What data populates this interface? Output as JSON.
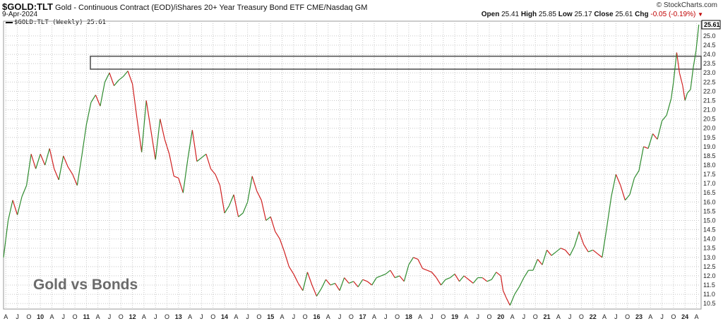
{
  "header": {
    "symbol": "$GOLD:TLT",
    "description": "Gold - Continuous Contract (EOD)/iShares 20+ Year Treasury Bond ETF  CME/Nasdaq GM",
    "date": "9-Apr-2024",
    "brand": "© StockCharts.com",
    "ohlc": {
      "open_label": "Open",
      "open": "25.41",
      "high_label": "High",
      "high": "25.85",
      "low_label": "Low",
      "low": "25.17",
      "close_label": "Close",
      "close": "25.61",
      "chg_label": "Chg",
      "chg": "-0.05 (-0.19%)"
    }
  },
  "legend": {
    "series": "$GOLD:TLT (Weekly) 25.61"
  },
  "overlay_text": "Gold vs Bonds",
  "colors": {
    "up": "#2e8b2e",
    "down": "#d02020",
    "grid": "#c8c8c8",
    "box": "#555555"
  },
  "chart_data": {
    "type": "line",
    "frequency": "weekly",
    "xlim": [
      2009.2,
      2024.35
    ],
    "ylim": [
      10.2,
      25.8
    ],
    "y_ticks": [
      "10.5",
      "11.0",
      "11.5",
      "12.0",
      "12.5",
      "13.0",
      "13.5",
      "14.0",
      "14.5",
      "15.0",
      "15.5",
      "16.0",
      "16.5",
      "17.0",
      "17.5",
      "18.0",
      "18.5",
      "19.0",
      "19.5",
      "20.0",
      "20.5",
      "21.0",
      "21.5",
      "22.0",
      "22.5",
      "23.0",
      "23.5",
      "24.0",
      "24.5",
      "25.0"
    ],
    "x_tick_labels": [
      "A",
      "J",
      "O",
      "10",
      "A",
      "J",
      "O",
      "11",
      "A",
      "J",
      "O",
      "12",
      "A",
      "J",
      "O",
      "13",
      "A",
      "J",
      "O",
      "14",
      "A",
      "J",
      "O",
      "15",
      "A",
      "J",
      "O",
      "16",
      "A",
      "J",
      "O",
      "17",
      "A",
      "J",
      "O",
      "18",
      "A",
      "J",
      "O",
      "19",
      "A",
      "J",
      "O",
      "20",
      "A",
      "J",
      "O",
      "21",
      "A",
      "J",
      "O",
      "22",
      "A",
      "J",
      "O",
      "23",
      "A",
      "J",
      "O",
      "24",
      "A"
    ],
    "last_value": "25.61",
    "resistance_zone": [
      23.2,
      23.9
    ],
    "points": [
      [
        2009.2,
        13.0
      ],
      [
        2009.3,
        15.0
      ],
      [
        2009.4,
        16.1
      ],
      [
        2009.5,
        15.3
      ],
      [
        2009.6,
        16.3
      ],
      [
        2009.7,
        16.9
      ],
      [
        2009.8,
        18.6
      ],
      [
        2009.9,
        17.8
      ],
      [
        2010.0,
        18.6
      ],
      [
        2010.1,
        18.0
      ],
      [
        2010.2,
        18.9
      ],
      [
        2010.3,
        17.8
      ],
      [
        2010.4,
        17.2
      ],
      [
        2010.5,
        18.5
      ],
      [
        2010.6,
        17.9
      ],
      [
        2010.7,
        17.5
      ],
      [
        2010.8,
        16.9
      ],
      [
        2010.9,
        18.5
      ],
      [
        2011.0,
        20.2
      ],
      [
        2011.1,
        21.4
      ],
      [
        2011.2,
        21.8
      ],
      [
        2011.3,
        21.2
      ],
      [
        2011.4,
        22.5
      ],
      [
        2011.5,
        23.0
      ],
      [
        2011.6,
        22.3
      ],
      [
        2011.7,
        22.6
      ],
      [
        2011.8,
        22.8
      ],
      [
        2011.9,
        23.1
      ],
      [
        2012.0,
        22.4
      ],
      [
        2012.1,
        20.5
      ],
      [
        2012.2,
        18.7
      ],
      [
        2012.3,
        21.5
      ],
      [
        2012.4,
        19.9
      ],
      [
        2012.5,
        18.3
      ],
      [
        2012.6,
        20.5
      ],
      [
        2012.7,
        19.4
      ],
      [
        2012.8,
        18.6
      ],
      [
        2012.9,
        17.4
      ],
      [
        2013.0,
        17.3
      ],
      [
        2013.1,
        16.5
      ],
      [
        2013.2,
        18.3
      ],
      [
        2013.3,
        19.9
      ],
      [
        2013.4,
        18.2
      ],
      [
        2013.5,
        18.4
      ],
      [
        2013.6,
        18.6
      ],
      [
        2013.7,
        17.8
      ],
      [
        2013.8,
        17.5
      ],
      [
        2013.9,
        16.9
      ],
      [
        2014.0,
        15.4
      ],
      [
        2014.1,
        15.8
      ],
      [
        2014.2,
        16.4
      ],
      [
        2014.3,
        15.2
      ],
      [
        2014.4,
        15.4
      ],
      [
        2014.5,
        16.0
      ],
      [
        2014.6,
        17.4
      ],
      [
        2014.7,
        16.6
      ],
      [
        2014.8,
        16.1
      ],
      [
        2014.9,
        15.0
      ],
      [
        2015.0,
        15.2
      ],
      [
        2015.1,
        14.4
      ],
      [
        2015.2,
        14.0
      ],
      [
        2015.3,
        13.3
      ],
      [
        2015.4,
        12.5
      ],
      [
        2015.5,
        12.1
      ],
      [
        2015.6,
        11.6
      ],
      [
        2015.7,
        11.2
      ],
      [
        2015.8,
        12.2
      ],
      [
        2015.9,
        11.5
      ],
      [
        2016.0,
        10.9
      ],
      [
        2016.1,
        11.3
      ],
      [
        2016.2,
        11.8
      ],
      [
        2016.3,
        11.5
      ],
      [
        2016.4,
        11.6
      ],
      [
        2016.5,
        11.2
      ],
      [
        2016.6,
        11.9
      ],
      [
        2016.7,
        11.6
      ],
      [
        2016.8,
        11.7
      ],
      [
        2016.9,
        11.4
      ],
      [
        2017.0,
        11.8
      ],
      [
        2017.1,
        11.7
      ],
      [
        2017.2,
        11.5
      ],
      [
        2017.3,
        11.9
      ],
      [
        2017.4,
        12.0
      ],
      [
        2017.5,
        12.1
      ],
      [
        2017.6,
        12.3
      ],
      [
        2017.7,
        11.9
      ],
      [
        2017.8,
        12.0
      ],
      [
        2017.9,
        11.7
      ],
      [
        2018.0,
        12.6
      ],
      [
        2018.1,
        13.0
      ],
      [
        2018.2,
        12.9
      ],
      [
        2018.3,
        12.4
      ],
      [
        2018.4,
        12.3
      ],
      [
        2018.5,
        12.2
      ],
      [
        2018.6,
        11.9
      ],
      [
        2018.7,
        11.5
      ],
      [
        2018.8,
        11.8
      ],
      [
        2018.9,
        11.9
      ],
      [
        2019.0,
        12.1
      ],
      [
        2019.1,
        11.7
      ],
      [
        2019.2,
        12.0
      ],
      [
        2019.3,
        11.8
      ],
      [
        2019.4,
        11.6
      ],
      [
        2019.5,
        11.9
      ],
      [
        2019.6,
        11.9
      ],
      [
        2019.7,
        11.7
      ],
      [
        2019.8,
        11.8
      ],
      [
        2019.9,
        12.2
      ],
      [
        2020.0,
        12.0
      ],
      [
        2020.05,
        11.2
      ],
      [
        2020.12,
        10.8
      ],
      [
        2020.2,
        10.4
      ],
      [
        2020.3,
        11.0
      ],
      [
        2020.4,
        11.4
      ],
      [
        2020.5,
        11.9
      ],
      [
        2020.6,
        12.3
      ],
      [
        2020.7,
        12.3
      ],
      [
        2020.8,
        12.9
      ],
      [
        2020.9,
        12.6
      ],
      [
        2021.0,
        13.4
      ],
      [
        2021.1,
        13.1
      ],
      [
        2021.2,
        13.3
      ],
      [
        2021.3,
        13.5
      ],
      [
        2021.4,
        13.4
      ],
      [
        2021.5,
        13.1
      ],
      [
        2021.6,
        13.6
      ],
      [
        2021.7,
        14.4
      ],
      [
        2021.8,
        13.7
      ],
      [
        2021.9,
        13.3
      ],
      [
        2022.0,
        13.4
      ],
      [
        2022.1,
        13.2
      ],
      [
        2022.2,
        13.0
      ],
      [
        2022.3,
        14.6
      ],
      [
        2022.4,
        16.3
      ],
      [
        2022.5,
        17.5
      ],
      [
        2022.6,
        16.9
      ],
      [
        2022.7,
        16.1
      ],
      [
        2022.8,
        16.4
      ],
      [
        2022.9,
        17.3
      ],
      [
        2023.0,
        17.7
      ],
      [
        2023.1,
        19.0
      ],
      [
        2023.2,
        18.9
      ],
      [
        2023.3,
        19.7
      ],
      [
        2023.4,
        19.4
      ],
      [
        2023.5,
        20.4
      ],
      [
        2023.6,
        20.7
      ],
      [
        2023.7,
        21.6
      ],
      [
        2023.75,
        22.5
      ],
      [
        2023.82,
        24.1
      ],
      [
        2023.88,
        23.0
      ],
      [
        2023.95,
        22.3
      ],
      [
        2024.0,
        21.5
      ],
      [
        2024.05,
        21.9
      ],
      [
        2024.12,
        22.1
      ],
      [
        2024.18,
        23.3
      ],
      [
        2024.24,
        24.2
      ],
      [
        2024.3,
        25.61
      ]
    ]
  }
}
